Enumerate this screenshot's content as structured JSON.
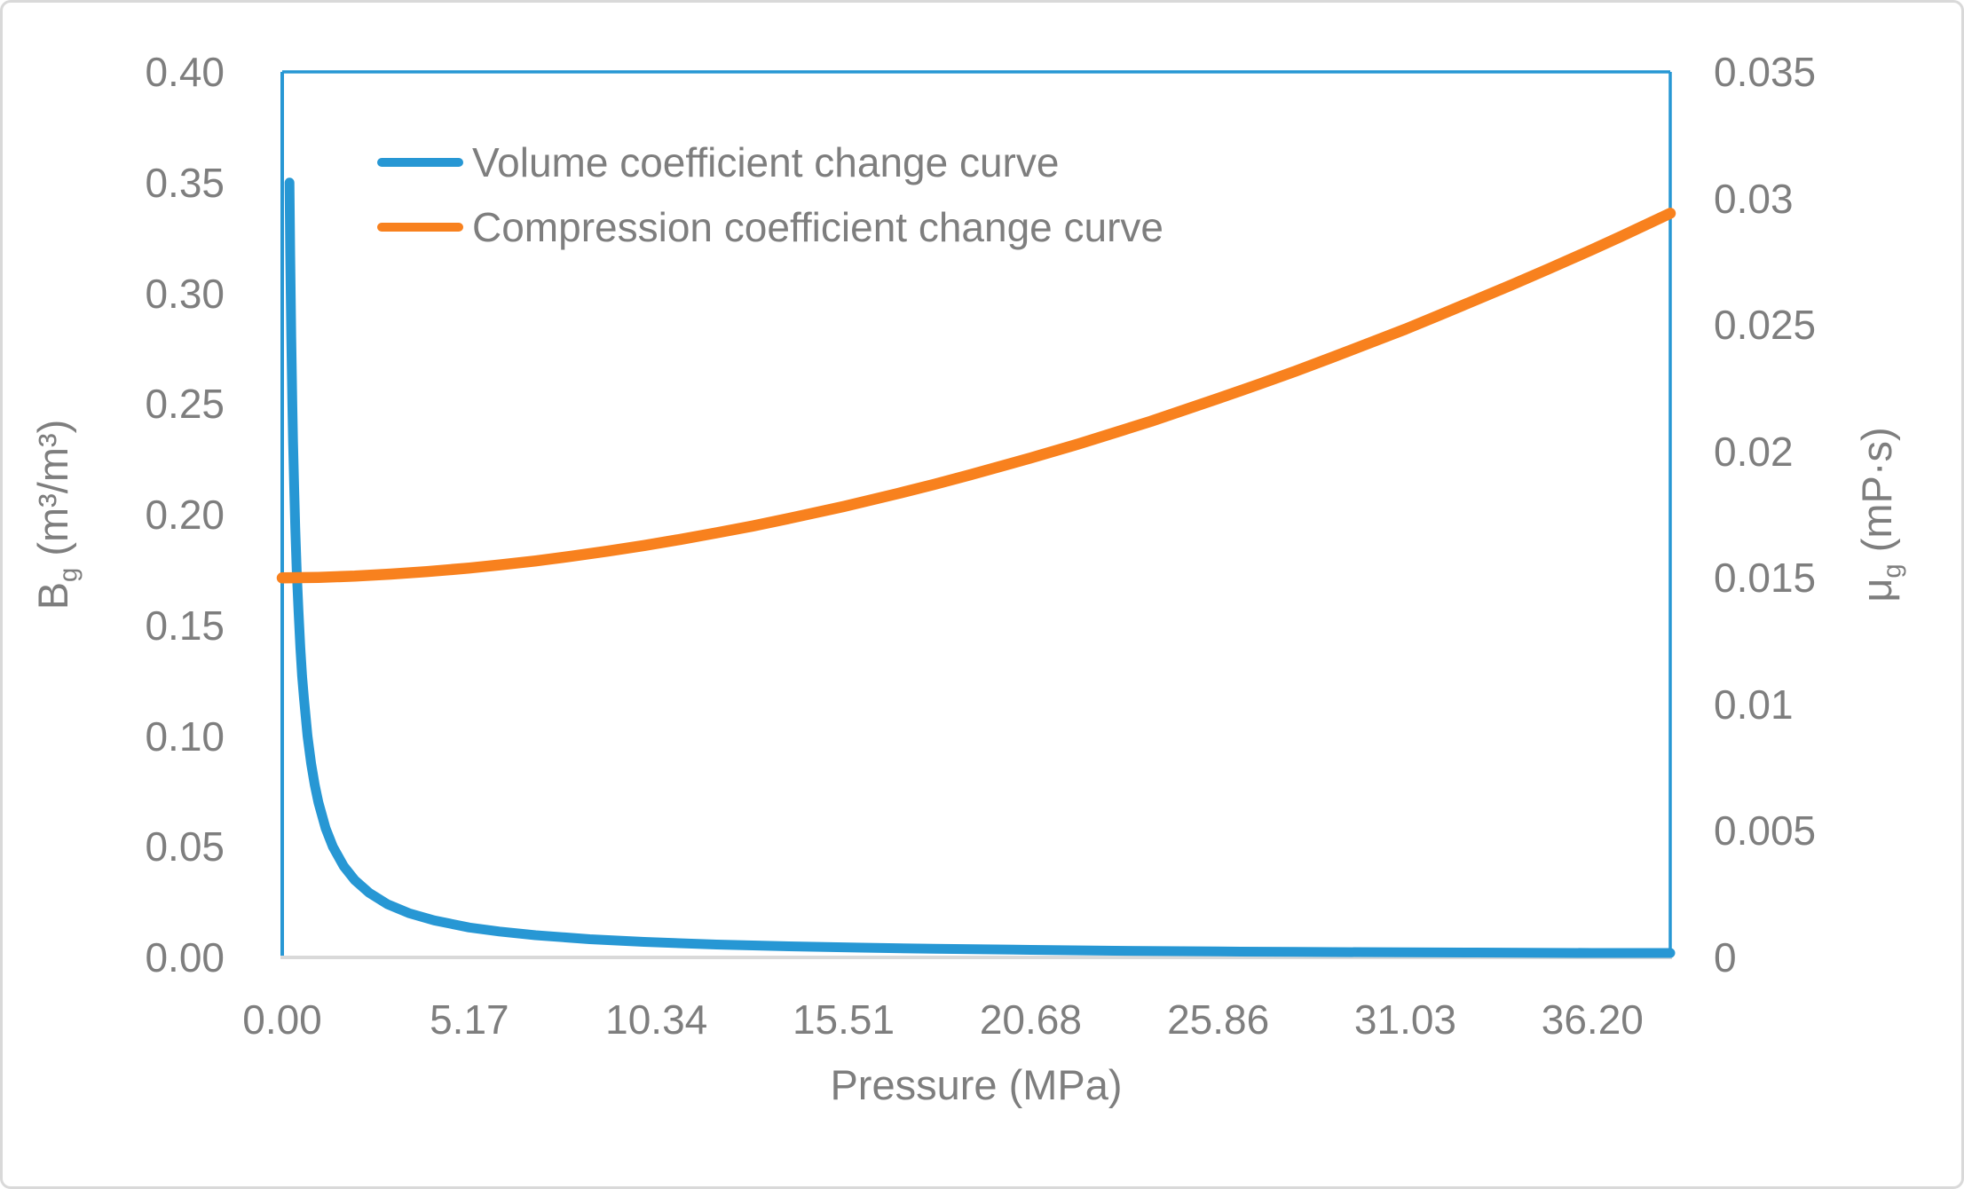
{
  "chart_data": {
    "type": "line",
    "x_axis": {
      "title": "Pressure (MPa)",
      "tick_labels": [
        "0.00",
        "5.17",
        "10.34",
        "15.51",
        "20.68",
        "25.86",
        "31.03",
        "36.20"
      ],
      "tick_values": [
        0,
        5.17,
        10.34,
        15.51,
        20.68,
        25.86,
        31.03,
        36.2
      ],
      "range": [
        0,
        38.35
      ]
    },
    "y_axis_left": {
      "title_symbol": "B",
      "title_subscript": "g",
      "title_unit": " (m³/m³)",
      "tick_labels": [
        "0.40",
        "0.35",
        "0.30",
        "0.25",
        "0.20",
        "0.15",
        "0.10",
        "0.05",
        "0.00"
      ],
      "tick_values": [
        0.4,
        0.35,
        0.3,
        0.25,
        0.2,
        0.15,
        0.1,
        0.05,
        0.0
      ],
      "range": [
        0,
        0.4
      ]
    },
    "y_axis_right": {
      "title_symbol": "μ",
      "title_subscript": "g",
      "title_unit": " (mP·s)",
      "tick_labels": [
        "0.035",
        "0.03",
        "0.025",
        "0.02",
        "0.015",
        "0.01",
        "0.005",
        "0"
      ],
      "tick_values": [
        0.035,
        0.03,
        0.025,
        0.02,
        0.015,
        0.01,
        0.005,
        0
      ],
      "range": [
        0,
        0.035
      ]
    },
    "legend_position": "top-left-inside",
    "series": [
      {
        "name": "Volume coefficient change curve",
        "axis": "left",
        "color": "#2797D4",
        "stroke_width": 11,
        "points": [
          [
            0.2,
            0.35
          ],
          [
            0.22,
            0.318
          ],
          [
            0.25,
            0.28
          ],
          [
            0.28,
            0.25
          ],
          [
            0.3,
            0.233
          ],
          [
            0.33,
            0.212
          ],
          [
            0.36,
            0.194
          ],
          [
            0.4,
            0.175
          ],
          [
            0.45,
            0.156
          ],
          [
            0.5,
            0.14
          ],
          [
            0.55,
            0.127
          ],
          [
            0.6,
            0.117
          ],
          [
            0.7,
            0.1
          ],
          [
            0.8,
            0.0875
          ],
          [
            0.9,
            0.0778
          ],
          [
            1,
            0.07
          ],
          [
            1.2,
            0.0583
          ],
          [
            1.4,
            0.05
          ],
          [
            1.7,
            0.0412
          ],
          [
            2,
            0.035
          ],
          [
            2.4,
            0.0292
          ],
          [
            2.9,
            0.0241
          ],
          [
            3.5,
            0.02
          ],
          [
            4.2,
            0.0167
          ],
          [
            5.17,
            0.0135
          ],
          [
            6,
            0.0117
          ],
          [
            7,
            0.01
          ],
          [
            8.5,
            0.0082
          ],
          [
            10,
            0.007
          ],
          [
            12,
            0.0058
          ],
          [
            14,
            0.005
          ],
          [
            16,
            0.0044
          ],
          [
            18,
            0.0039
          ],
          [
            20.68,
            0.0034
          ],
          [
            23,
            0.003
          ],
          [
            25.86,
            0.0027
          ],
          [
            28,
            0.0025
          ],
          [
            31.03,
            0.0023
          ],
          [
            33,
            0.0022
          ],
          [
            36.2,
            0.002
          ],
          [
            38.35,
            0.002
          ]
        ]
      },
      {
        "name": "Compression coefficient change curve",
        "axis": "right",
        "color": "#F8811E",
        "stroke_width": 12.5,
        "points": [
          [
            0,
            0.015
          ],
          [
            1,
            0.01502
          ],
          [
            2,
            0.01507
          ],
          [
            3,
            0.01515
          ],
          [
            4,
            0.01525
          ],
          [
            5.17,
            0.01539
          ],
          [
            6,
            0.01551
          ],
          [
            7,
            0.01567
          ],
          [
            8,
            0.01586
          ],
          [
            9,
            0.01606
          ],
          [
            10,
            0.01628
          ],
          [
            11,
            0.01652
          ],
          [
            12,
            0.01678
          ],
          [
            13,
            0.01705
          ],
          [
            14,
            0.01735
          ],
          [
            15.51,
            0.01782
          ],
          [
            17,
            0.01833
          ],
          [
            18,
            0.01869
          ],
          [
            19,
            0.01907
          ],
          [
            20.68,
            0.01974
          ],
          [
            22,
            0.02029
          ],
          [
            23,
            0.02074
          ],
          [
            24,
            0.02119
          ],
          [
            25.86,
            0.02209
          ],
          [
            27,
            0.02266
          ],
          [
            28,
            0.02317
          ],
          [
            29,
            0.02371
          ],
          [
            30,
            0.02426
          ],
          [
            31.03,
            0.02483
          ],
          [
            32,
            0.0254
          ],
          [
            33,
            0.026
          ],
          [
            34,
            0.0266
          ],
          [
            35,
            0.02722
          ],
          [
            36.2,
            0.02798
          ],
          [
            37,
            0.0285
          ],
          [
            38.35,
            0.02941
          ]
        ]
      }
    ],
    "styles": {
      "text_color": "#7E7E7E",
      "plot_border_color": "#2797D4",
      "x_axis_line_color": "#D9D9D9",
      "figure_border_color": "#D9D9D9",
      "background": "#FFFFFF"
    }
  }
}
